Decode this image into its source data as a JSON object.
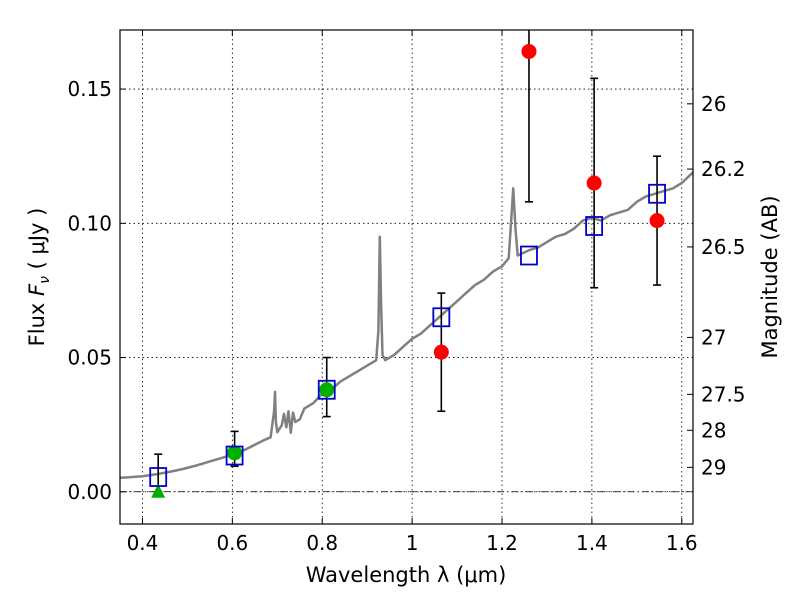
{
  "chart_data": {
    "type": "scatter",
    "xlabel": "Wavelength  λ (μm)",
    "ylabel": "Flux  F_ν  ( μJy )",
    "ylabel_parts": {
      "prefix": "Flux  ",
      "var": "F",
      "sub": "ν",
      "suffix": "  ( μJy )"
    },
    "y2label": "Magnitude (AB)",
    "xlim": [
      0.35,
      1.625
    ],
    "ylim": [
      -0.012,
      0.172
    ],
    "xticks": [
      0.4,
      0.6,
      0.8,
      1.0,
      1.2,
      1.4,
      1.6
    ],
    "xtick_labels": [
      "0.4",
      "0.6",
      "0.8",
      "1",
      "1.2",
      "1.4",
      "1.6"
    ],
    "yticks": [
      0.0,
      0.05,
      0.1,
      0.15
    ],
    "ytick_labels": [
      "0.00",
      "0.05",
      "0.10",
      "0.15"
    ],
    "y2ticks": [
      {
        "label": "26",
        "flux": 0.1445
      },
      {
        "label": "26.2",
        "flux": 0.1202
      },
      {
        "label": "26.5",
        "flux": 0.0912
      },
      {
        "label": "27",
        "flux": 0.0575
      },
      {
        "label": "27.5",
        "flux": 0.0363
      },
      {
        "label": "28",
        "flux": 0.0229
      },
      {
        "label": "29",
        "flux": 0.0091
      }
    ],
    "grid": true,
    "zero_line": true,
    "series": [
      {
        "name": "model spectrum",
        "style": "line",
        "color": "#808080",
        "points": [
          [
            0.35,
            0.0052
          ],
          [
            0.37,
            0.0054
          ],
          [
            0.4,
            0.0058
          ],
          [
            0.43,
            0.0065
          ],
          [
            0.46,
            0.0074
          ],
          [
            0.49,
            0.0085
          ],
          [
            0.52,
            0.0098
          ],
          [
            0.55,
            0.0113
          ],
          [
            0.58,
            0.0128
          ],
          [
            0.61,
            0.0143
          ],
          [
            0.63,
            0.0158
          ],
          [
            0.65,
            0.0175
          ],
          [
            0.67,
            0.0192
          ],
          [
            0.685,
            0.0203
          ],
          [
            0.693,
            0.03
          ],
          [
            0.695,
            0.0372
          ],
          [
            0.697,
            0.026
          ],
          [
            0.7,
            0.0222
          ],
          [
            0.71,
            0.0248
          ],
          [
            0.715,
            0.029
          ],
          [
            0.72,
            0.024
          ],
          [
            0.725,
            0.03
          ],
          [
            0.73,
            0.022
          ],
          [
            0.735,
            0.0295
          ],
          [
            0.74,
            0.026
          ],
          [
            0.75,
            0.027
          ],
          [
            0.76,
            0.031
          ],
          [
            0.78,
            0.033
          ],
          [
            0.8,
            0.0365
          ],
          [
            0.82,
            0.038
          ],
          [
            0.84,
            0.041
          ],
          [
            0.86,
            0.043
          ],
          [
            0.88,
            0.045
          ],
          [
            0.9,
            0.047
          ],
          [
            0.92,
            0.049
          ],
          [
            0.925,
            0.06
          ],
          [
            0.928,
            0.095
          ],
          [
            0.931,
            0.07
          ],
          [
            0.934,
            0.051
          ],
          [
            0.94,
            0.049
          ],
          [
            0.96,
            0.051
          ],
          [
            0.98,
            0.054
          ],
          [
            1.0,
            0.057
          ],
          [
            1.02,
            0.059
          ],
          [
            1.04,
            0.062
          ],
          [
            1.06,
            0.065
          ],
          [
            1.08,
            0.068
          ],
          [
            1.1,
            0.071
          ],
          [
            1.12,
            0.074
          ],
          [
            1.14,
            0.077
          ],
          [
            1.16,
            0.079
          ],
          [
            1.18,
            0.082
          ],
          [
            1.2,
            0.084
          ],
          [
            1.215,
            0.087
          ],
          [
            1.22,
            0.1
          ],
          [
            1.225,
            0.113
          ],
          [
            1.23,
            0.098
          ],
          [
            1.235,
            0.088
          ],
          [
            1.26,
            0.09
          ],
          [
            1.28,
            0.091
          ],
          [
            1.3,
            0.093
          ],
          [
            1.32,
            0.095
          ],
          [
            1.34,
            0.096
          ],
          [
            1.36,
            0.098
          ],
          [
            1.38,
            0.101
          ],
          [
            1.4,
            0.102
          ],
          [
            1.42,
            0.101
          ],
          [
            1.44,
            0.103
          ],
          [
            1.46,
            0.104
          ],
          [
            1.48,
            0.105
          ],
          [
            1.5,
            0.108
          ],
          [
            1.52,
            0.11
          ],
          [
            1.54,
            0.111
          ],
          [
            1.56,
            0.112
          ],
          [
            1.58,
            0.113
          ],
          [
            1.6,
            0.115
          ],
          [
            1.625,
            0.119
          ]
        ]
      },
      {
        "name": "observed (red)",
        "style": "marker",
        "marker": "circle",
        "color": "#ff0000",
        "points": [
          {
            "x": 1.065,
            "y": 0.052,
            "err_low": 0.03,
            "err_high": 0.074
          },
          {
            "x": 1.26,
            "y": 0.164,
            "err_low": 0.108,
            "err_high": 0.175
          },
          {
            "x": 1.405,
            "y": 0.115,
            "err_low": 0.076,
            "err_high": 0.154
          },
          {
            "x": 1.545,
            "y": 0.101,
            "err_low": 0.077,
            "err_high": 0.125
          }
        ]
      },
      {
        "name": "observed (green)",
        "style": "marker",
        "marker": "circle",
        "color": "#00b000",
        "points": [
          {
            "x": 0.605,
            "y": 0.0145,
            "err_low": 0.0095,
            "err_high": 0.0225
          },
          {
            "x": 0.81,
            "y": 0.038,
            "err_low": 0.028,
            "err_high": 0.05
          }
        ]
      },
      {
        "name": "upper limit (green)",
        "style": "marker",
        "marker": "triangle",
        "color": "#00b000",
        "points": [
          {
            "x": 0.435,
            "y": 0.0,
            "err_low": 0.0,
            "err_high": 0.014
          }
        ]
      },
      {
        "name": "model photometry",
        "style": "marker",
        "marker": "open-square",
        "color": "#0000cc",
        "points": [
          {
            "x": 0.435,
            "y": 0.0055
          },
          {
            "x": 0.605,
            "y": 0.0135
          },
          {
            "x": 0.81,
            "y": 0.038
          },
          {
            "x": 1.065,
            "y": 0.065
          },
          {
            "x": 1.26,
            "y": 0.088
          },
          {
            "x": 1.405,
            "y": 0.099
          },
          {
            "x": 1.545,
            "y": 0.111
          }
        ]
      }
    ]
  }
}
